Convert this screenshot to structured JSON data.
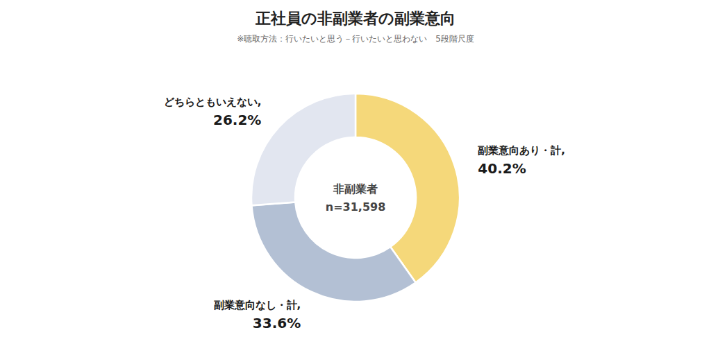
{
  "chart_data": {
    "type": "donut",
    "title": "正社員の非副業者の副業意向",
    "subtitle": "※聴取方法：行いたいと思う－行いたいと思わない　5段階尺度",
    "annotations": [
      "非副業者",
      "n=31,598"
    ],
    "categories": [
      "副業意向あり・計,",
      "副業意向なし・計,",
      "どちらともいえない,"
    ],
    "values": [
      40.2,
      33.6,
      26.2
    ],
    "value_labels": [
      "40.2%",
      "33.6%",
      "26.2%"
    ],
    "colors": [
      "#F5D87A",
      "#B3C0D4",
      "#E2E6F0"
    ],
    "data_labels": true
  }
}
